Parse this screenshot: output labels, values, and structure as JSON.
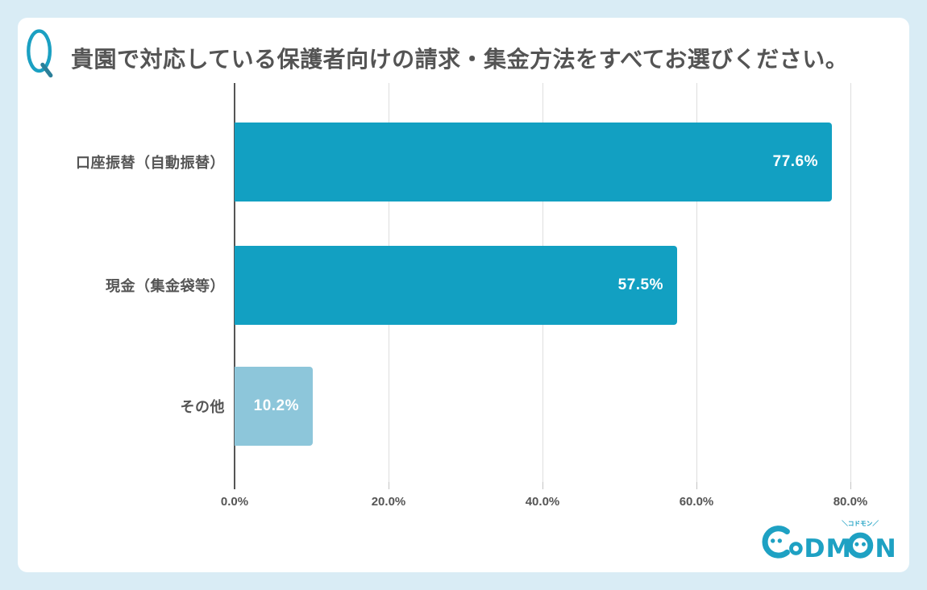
{
  "page": {
    "background_color": "#d9ecf5",
    "card_color": "#ffffff"
  },
  "header": {
    "icon": "q-question-icon",
    "icon_color": "#1ba0c2",
    "title": "貴園で対応している保護者向けの請求・集金方法をすべてお選びください。"
  },
  "chart_data": {
    "type": "bar",
    "orientation": "horizontal",
    "title": "貴園で対応している保護者向けの請求・集金方法をすべてお選びください。",
    "categories": [
      "口座振替（自動振替）",
      "現金（集金袋等）",
      "その他"
    ],
    "values": [
      77.6,
      57.5,
      10.2
    ],
    "value_labels": [
      "77.6%",
      "57.5%",
      "10.2%"
    ],
    "bar_colors": [
      "#12a0c2",
      "#12a0c2",
      "#8dc6da"
    ],
    "xticks": [
      0,
      20,
      40,
      60,
      80
    ],
    "xtick_labels": [
      "0.0%",
      "20.0%",
      "40.0%",
      "60.0%",
      "80.0%"
    ],
    "xlim": [
      0,
      85
    ],
    "grid": true,
    "gridline_color": "#dedede",
    "axis_color": "#555555",
    "value_label_position": "inside-end",
    "legend": "none"
  },
  "logo": {
    "brand": "CODMON",
    "letters_dm": "DM",
    "letter_n": "N",
    "kana": "＼コドモン／",
    "color": "#1ea1c3"
  }
}
